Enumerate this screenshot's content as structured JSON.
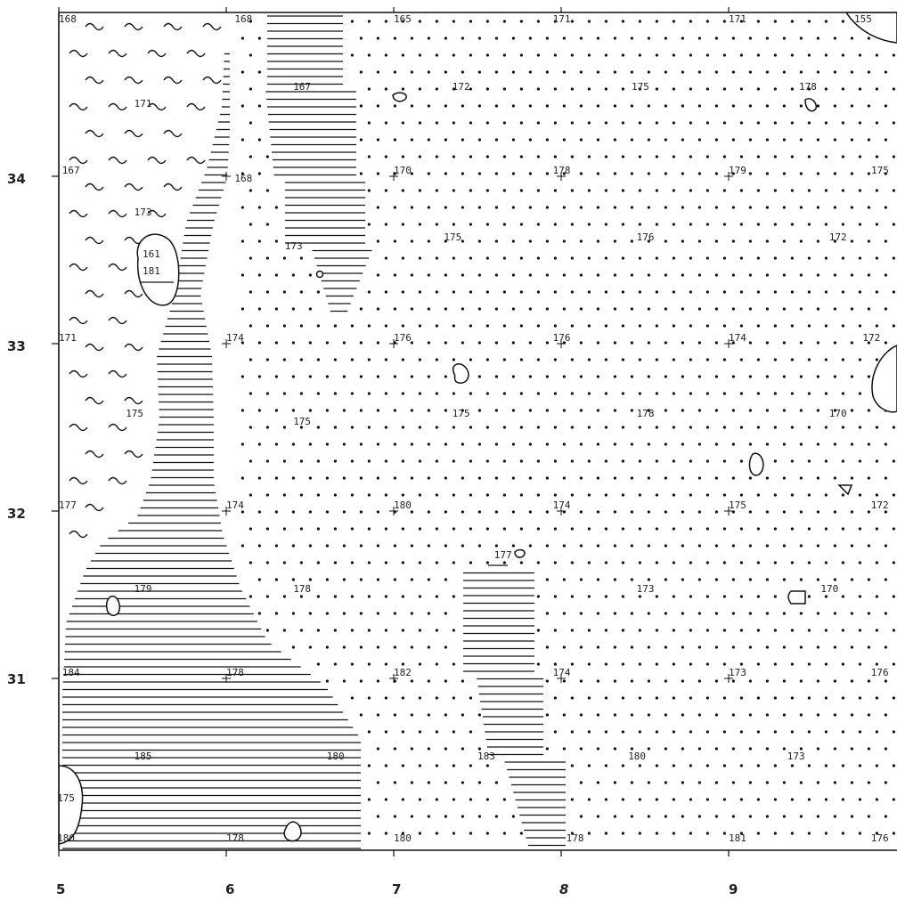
{
  "x_axis": [
    "5",
    "6",
    "7",
    "8",
    "9"
  ],
  "y_axis": [
    "34",
    "33",
    "32",
    "31"
  ],
  "colors": {
    "ink": "#111111",
    "background": "#ffffff"
  },
  "spot_values": [
    {
      "label": "168",
      "col": 5.0,
      "row": 35.0
    },
    {
      "label": "168",
      "col": 6.05,
      "row": 35.0
    },
    {
      "label": "165",
      "col": 7.0,
      "row": 35.0
    },
    {
      "label": "171",
      "col": 7.95,
      "row": 35.0
    },
    {
      "label": "171",
      "col": 9.0,
      "row": 35.0
    },
    {
      "label": "155",
      "col": 9.75,
      "row": 35.0
    },
    {
      "label": "167",
      "col": 6.4,
      "row": 34.5
    },
    {
      "label": "172",
      "col": 7.35,
      "row": 34.5
    },
    {
      "label": "175",
      "col": 8.42,
      "row": 34.5
    },
    {
      "label": "178",
      "col": 9.42,
      "row": 34.5
    },
    {
      "label": "171",
      "col": 5.45,
      "row": 34.4
    },
    {
      "label": "167",
      "col": 5.02,
      "row": 34.0
    },
    {
      "label": "168",
      "col": 6.05,
      "row": 33.95
    },
    {
      "label": "170",
      "col": 7.0,
      "row": 34.0
    },
    {
      "label": "178",
      "col": 7.95,
      "row": 34.0
    },
    {
      "label": "179",
      "col": 9.0,
      "row": 34.0
    },
    {
      "label": "175",
      "col": 9.9,
      "row": 34.0
    },
    {
      "label": "173",
      "col": 5.45,
      "row": 33.75
    },
    {
      "label": "161",
      "col": 5.5,
      "row": 33.5
    },
    {
      "label": "181",
      "col": 5.5,
      "row": 33.4
    },
    {
      "label": "173",
      "col": 6.35,
      "row": 33.55
    },
    {
      "label": "175",
      "col": 7.3,
      "row": 33.6
    },
    {
      "label": "176",
      "col": 8.45,
      "row": 33.6
    },
    {
      "label": "172",
      "col": 9.6,
      "row": 33.6
    },
    {
      "label": "171",
      "col": 5.0,
      "row": 33.0
    },
    {
      "label": "174",
      "col": 6.0,
      "row": 33.0
    },
    {
      "label": "176",
      "col": 7.0,
      "row": 33.0
    },
    {
      "label": "176",
      "col": 7.95,
      "row": 33.0
    },
    {
      "label": "174",
      "col": 9.0,
      "row": 33.0
    },
    {
      "label": "172",
      "col": 9.8,
      "row": 33.0
    },
    {
      "label": "175",
      "col": 5.4,
      "row": 32.55
    },
    {
      "label": "175",
      "col": 6.4,
      "row": 32.5
    },
    {
      "label": "175",
      "col": 7.35,
      "row": 32.55
    },
    {
      "label": "178",
      "col": 8.45,
      "row": 32.55
    },
    {
      "label": "170",
      "col": 9.6,
      "row": 32.55
    },
    {
      "label": "177",
      "col": 5.0,
      "row": 32.0
    },
    {
      "label": "174",
      "col": 6.0,
      "row": 32.0
    },
    {
      "label": "180",
      "col": 7.0,
      "row": 32.0
    },
    {
      "label": "174",
      "col": 7.95,
      "row": 32.0
    },
    {
      "label": "175",
      "col": 9.0,
      "row": 32.0
    },
    {
      "label": "172",
      "col": 9.85,
      "row": 32.0
    },
    {
      "label": "177",
      "col": 7.6,
      "row": 31.7
    },
    {
      "label": "179",
      "col": 5.45,
      "row": 31.5
    },
    {
      "label": "178",
      "col": 6.4,
      "row": 31.5
    },
    {
      "label": "173",
      "col": 8.45,
      "row": 31.5
    },
    {
      "label": "170",
      "col": 9.55,
      "row": 31.5
    },
    {
      "label": "184",
      "col": 5.02,
      "row": 31.0
    },
    {
      "label": "178",
      "col": 6.0,
      "row": 31.0
    },
    {
      "label": "182",
      "col": 7.0,
      "row": 31.0
    },
    {
      "label": "174",
      "col": 7.95,
      "row": 31.0
    },
    {
      "label": "173",
      "col": 9.0,
      "row": 31.0
    },
    {
      "label": "176",
      "col": 9.85,
      "row": 31.0
    },
    {
      "label": "185",
      "col": 5.45,
      "row": 30.5
    },
    {
      "label": "180",
      "col": 6.6,
      "row": 30.5
    },
    {
      "label": "183",
      "col": 7.5,
      "row": 30.5
    },
    {
      "label": "180",
      "col": 8.4,
      "row": 30.5
    },
    {
      "label": "173",
      "col": 9.35,
      "row": 30.5
    },
    {
      "label": "175",
      "col": 4.99,
      "row": 30.25
    },
    {
      "label": "180",
      "col": 4.99,
      "row": 30.05
    },
    {
      "label": "178",
      "col": 6.0,
      "row": 30.05
    },
    {
      "label": "180",
      "col": 7.0,
      "row": 30.05
    },
    {
      "label": "178",
      "col": 8.03,
      "row": 30.05
    },
    {
      "label": "181",
      "col": 9.0,
      "row": 30.05
    },
    {
      "label": "176",
      "col": 9.85,
      "row": 30.05
    }
  ]
}
